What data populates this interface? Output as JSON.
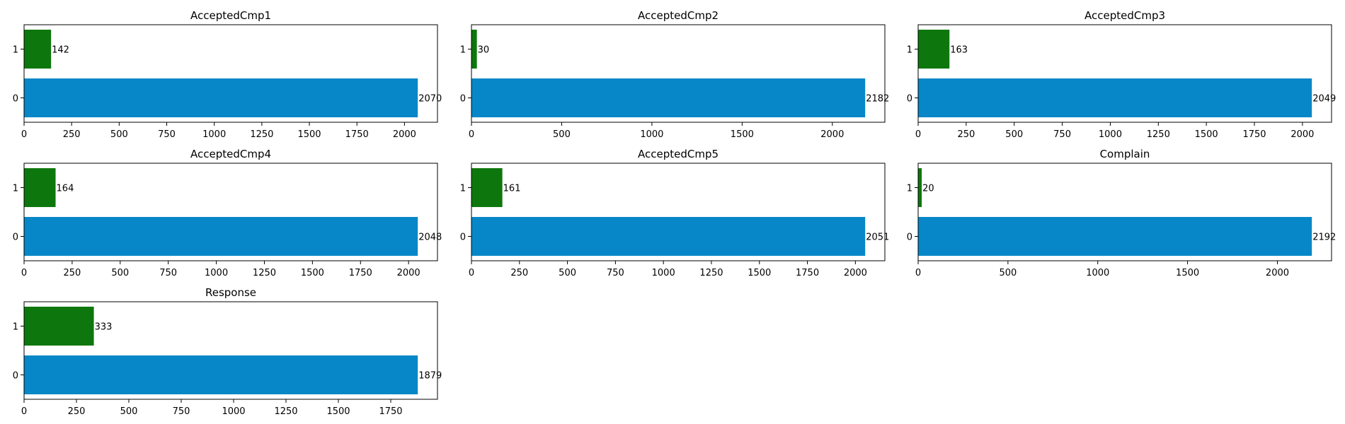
{
  "colors": {
    "bar_0": "#0787c7",
    "bar_1": "#0d770d",
    "axis": "#000000"
  },
  "chart_data": [
    {
      "type": "bar",
      "orientation": "horizontal",
      "title": "AcceptedCmp1",
      "categories": [
        "0",
        "1"
      ],
      "values": [
        2070,
        142
      ],
      "xlim": [
        0,
        2173.5
      ],
      "xticks": [
        0,
        250,
        500,
        750,
        1000,
        1250,
        1500,
        1750,
        2000
      ],
      "xticklabels": [
        "0",
        "250",
        "500",
        "750",
        "1000",
        "1250",
        "1500",
        "1750",
        "2000"
      ],
      "bar_labels": [
        "2070",
        "142"
      ]
    },
    {
      "type": "bar",
      "orientation": "horizontal",
      "title": "AcceptedCmp2",
      "categories": [
        "0",
        "1"
      ],
      "values": [
        2182,
        30
      ],
      "xlim": [
        0,
        2291.1
      ],
      "xticks": [
        0,
        500,
        1000,
        1500,
        2000
      ],
      "xticklabels": [
        "0",
        "500",
        "1000",
        "1500",
        "2000"
      ],
      "bar_labels": [
        "2182",
        "30"
      ]
    },
    {
      "type": "bar",
      "orientation": "horizontal",
      "title": "AcceptedCmp3",
      "categories": [
        "0",
        "1"
      ],
      "values": [
        2049,
        163
      ],
      "xlim": [
        0,
        2151.45
      ],
      "xticks": [
        0,
        250,
        500,
        750,
        1000,
        1250,
        1500,
        1750,
        2000
      ],
      "xticklabels": [
        "0",
        "250",
        "500",
        "750",
        "1000",
        "1250",
        "1500",
        "1750",
        "2000"
      ],
      "bar_labels": [
        "2049",
        "163"
      ]
    },
    {
      "type": "bar",
      "orientation": "horizontal",
      "title": "AcceptedCmp4",
      "categories": [
        "0",
        "1"
      ],
      "values": [
        2048,
        164
      ],
      "xlim": [
        0,
        2150.4
      ],
      "xticks": [
        0,
        250,
        500,
        750,
        1000,
        1250,
        1500,
        1750,
        2000
      ],
      "xticklabels": [
        "0",
        "250",
        "500",
        "750",
        "1000",
        "1250",
        "1500",
        "1750",
        "2000"
      ],
      "bar_labels": [
        "2048",
        "164"
      ]
    },
    {
      "type": "bar",
      "orientation": "horizontal",
      "title": "AcceptedCmp5",
      "categories": [
        "0",
        "1"
      ],
      "values": [
        2051,
        161
      ],
      "xlim": [
        0,
        2153.55
      ],
      "xticks": [
        0,
        250,
        500,
        750,
        1000,
        1250,
        1500,
        1750,
        2000
      ],
      "xticklabels": [
        "0",
        "250",
        "500",
        "750",
        "1000",
        "1250",
        "1500",
        "1750",
        "2000"
      ],
      "bar_labels": [
        "2051",
        "161"
      ]
    },
    {
      "type": "bar",
      "orientation": "horizontal",
      "title": "Complain",
      "categories": [
        "0",
        "1"
      ],
      "values": [
        2192,
        20
      ],
      "xlim": [
        0,
        2301.6
      ],
      "xticks": [
        0,
        500,
        1000,
        1500,
        2000
      ],
      "xticklabels": [
        "0",
        "500",
        "1000",
        "1500",
        "2000"
      ],
      "bar_labels": [
        "2192",
        "20"
      ]
    },
    {
      "type": "bar",
      "orientation": "horizontal",
      "title": "Response",
      "categories": [
        "0",
        "1"
      ],
      "values": [
        1879,
        333
      ],
      "xlim": [
        0,
        1972.95
      ],
      "xticks": [
        0,
        250,
        500,
        750,
        1000,
        1250,
        1500,
        1750
      ],
      "xticklabels": [
        "0",
        "250",
        "500",
        "750",
        "1000",
        "1250",
        "1500",
        "1750"
      ],
      "bar_labels": [
        "1879",
        "333"
      ]
    }
  ]
}
